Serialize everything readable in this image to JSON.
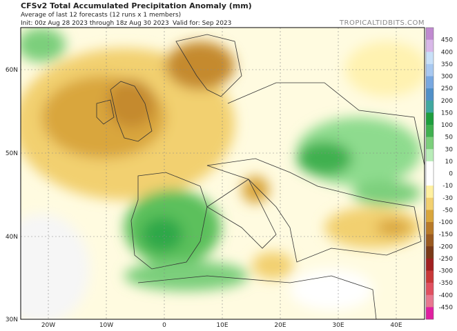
{
  "header": {
    "title": "CFSv2 Total Accumulated Precipitation Anomaly (mm)",
    "subtitle": "Average of last 12 forecasts (12 runs x 1 members)",
    "init": "Init: 00z Aug 28 2023 through 18z Aug 30 2023",
    "valid": "Valid for: Sep 2023",
    "site": "TROPICALTIDBITS.COM"
  },
  "axes": {
    "lat_labels": [
      "60N",
      "50N",
      "40N",
      "30N"
    ],
    "lon_labels": [
      "20W",
      "10W",
      "0",
      "10E",
      "20E",
      "30E",
      "40E"
    ]
  },
  "colorbar": {
    "labels": [
      "450",
      "400",
      "350",
      "300",
      "250",
      "200",
      "150",
      "100",
      "50",
      "30",
      "10",
      "0",
      "-10",
      "-30",
      "-50",
      "-100",
      "-150",
      "-200",
      "-250",
      "-300",
      "-350",
      "-400",
      "-450"
    ],
    "colors": [
      "#c08ad0",
      "#d8b8e8",
      "#c8e0f8",
      "#a8c8f0",
      "#78a8e0",
      "#5090c8",
      "#40a8a0",
      "#1e9e3e",
      "#40b050",
      "#7ccf7c",
      "#b8ecb8",
      "#ffffff",
      "#ffffff",
      "#fff0a0",
      "#f2d070",
      "#d9a63c",
      "#b87a28",
      "#9a5a20",
      "#7a3a18",
      "#a02020",
      "#c83838",
      "#e05060",
      "#e87890",
      "#e020a0"
    ]
  }
}
